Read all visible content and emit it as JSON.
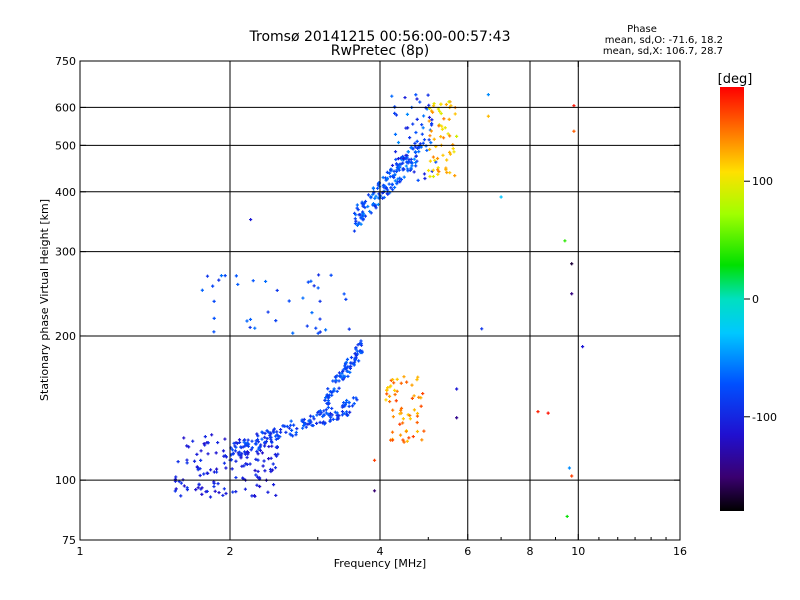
{
  "chart_data": {
    "type": "scatter",
    "title": "Tromsø 20141215 00:56:00-00:57:43",
    "subtitle": "RwPretec (8p)",
    "phase_header": "Phase",
    "phase_stat_o": "mean, sd,O: -71.6, 18.2",
    "phase_stat_x": "mean, sd,X: 106.7, 28.7",
    "xlabel": "Frequency [MHz]",
    "ylabel": "Stationary phase Virtual Height [km]",
    "xscale": "log2",
    "yscale": "log",
    "xlim": [
      1,
      16
    ],
    "ylim": [
      75,
      750
    ],
    "x_ticks": [
      1,
      2,
      4,
      6,
      8,
      10,
      16
    ],
    "x_tick_labels": [
      "1",
      "2",
      "4",
      "6",
      "8",
      "10",
      "16"
    ],
    "y_ticks": [
      75,
      100,
      200,
      300,
      400,
      500,
      600,
      750
    ],
    "y_tick_labels": [
      "75",
      "100",
      "200",
      "300",
      "400",
      "500",
      "600",
      "750"
    ],
    "x_grid": [
      2,
      4,
      6,
      8,
      10
    ],
    "y_grid": [
      100,
      200,
      300,
      400,
      500,
      600
    ],
    "colorbar": {
      "label": "[deg]",
      "range": [
        -180,
        180
      ],
      "tick_values": [
        100,
        0,
        -100
      ],
      "tick_labels": [
        "100",
        "0",
        "-100"
      ]
    },
    "clusters": [
      {
        "name": "E-region O trace low",
        "x_range": [
          1.55,
          2.5
        ],
        "y_range": [
          92,
          125
        ],
        "phase_range": [
          -120,
          -90
        ],
        "count": 140
      },
      {
        "name": "F1 O trace ramp",
        "x_range": [
          2.0,
          3.6
        ],
        "y_range": [
          110,
          150
        ],
        "phase_range": [
          -100,
          -65
        ],
        "count": 170
      },
      {
        "name": "F1 O cusp",
        "x_range": [
          3.1,
          3.7
        ],
        "y_range": [
          140,
          200
        ],
        "phase_range": [
          -95,
          -60
        ],
        "count": 90
      },
      {
        "name": "F1 X trace",
        "x_range": [
          4.1,
          4.9
        ],
        "y_range": [
          120,
          165
        ],
        "phase_range": [
          110,
          160
        ],
        "count": 60
      },
      {
        "name": "F2 O trace",
        "x_range": [
          3.55,
          4.8
        ],
        "y_range": [
          330,
          520
        ],
        "phase_range": [
          -95,
          -50
        ],
        "count": 170
      },
      {
        "name": "F2 O upper",
        "x_range": [
          4.2,
          5.2
        ],
        "y_range": [
          420,
          640
        ],
        "phase_range": [
          -110,
          -50
        ],
        "count": 60
      },
      {
        "name": "F2 X trace",
        "x_range": [
          5.0,
          5.7
        ],
        "y_range": [
          430,
          620
        ],
        "phase_range": [
          90,
          140
        ],
        "count": 60
      },
      {
        "name": "Sporadic mid-height",
        "x_range": [
          1.75,
          3.5
        ],
        "y_range": [
          200,
          270
        ],
        "phase_range": [
          -95,
          -60
        ],
        "count": 40
      }
    ],
    "isolated_points": [
      {
        "x": 8.3,
        "y": 139,
        "phase": 170
      },
      {
        "x": 8.7,
        "y": 138,
        "phase": 175
      },
      {
        "x": 9.4,
        "y": 316,
        "phase": 40
      },
      {
        "x": 9.7,
        "y": 283,
        "phase": -165
      },
      {
        "x": 9.7,
        "y": 245,
        "phase": -145
      },
      {
        "x": 9.8,
        "y": 605,
        "phase": 175
      },
      {
        "x": 9.8,
        "y": 535,
        "phase": 150
      },
      {
        "x": 9.6,
        "y": 106,
        "phase": -50
      },
      {
        "x": 9.7,
        "y": 102,
        "phase": 160
      },
      {
        "x": 9.5,
        "y": 84,
        "phase": 30
      },
      {
        "x": 10.2,
        "y": 190,
        "phase": -110
      },
      {
        "x": 7.0,
        "y": 390,
        "phase": -30
      },
      {
        "x": 6.4,
        "y": 207,
        "phase": -90
      },
      {
        "x": 6.6,
        "y": 638,
        "phase": -50
      },
      {
        "x": 6.6,
        "y": 575,
        "phase": 120
      },
      {
        "x": 5.7,
        "y": 155,
        "phase": -110
      },
      {
        "x": 5.7,
        "y": 135,
        "phase": -140
      },
      {
        "x": 2.2,
        "y": 350,
        "phase": -110
      },
      {
        "x": 3.9,
        "y": 95,
        "phase": -150
      },
      {
        "x": 3.9,
        "y": 110,
        "phase": 160
      }
    ]
  }
}
